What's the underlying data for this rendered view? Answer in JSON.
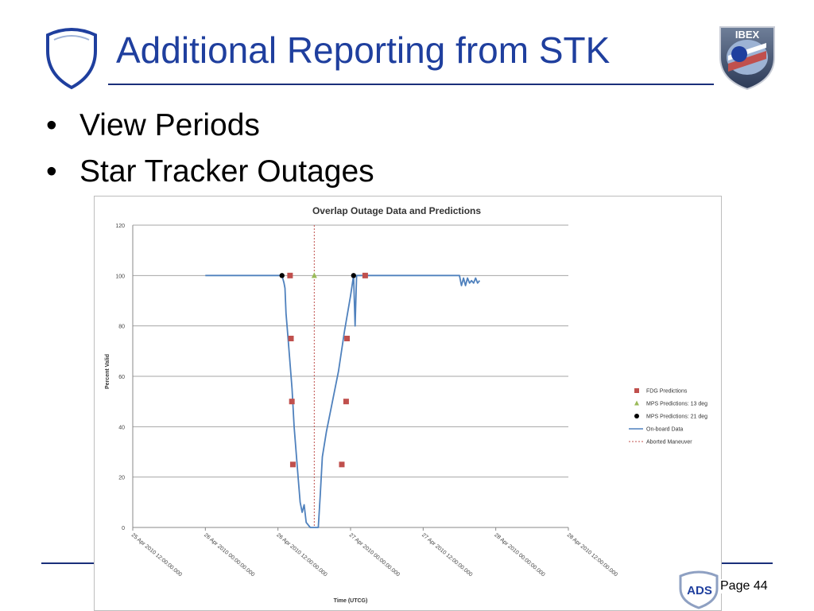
{
  "slide": {
    "title": "Additional Reporting from STK",
    "bullets": [
      "View Periods",
      "Star Tracker Outages"
    ],
    "page_label": "Page 44",
    "footer_logo_text": "ADS",
    "brand_color": "#1f3f9e",
    "logo_text": "IBEX"
  },
  "chart_data": {
    "type": "scatter",
    "title": "Overlap Outage Data and Predictions",
    "xlabel": "Time (UTCG)",
    "ylabel": "Percent Valid",
    "ylim": [
      0,
      120
    ],
    "yticks": [
      0,
      20,
      40,
      60,
      80,
      100,
      120
    ],
    "xlim": [
      "25 Apr 2010 12:00:00.000",
      "28 Apr 2010 12:00:00.000"
    ],
    "xticks": [
      "25 Apr 2010 12:00:00.000",
      "26 Apr 2010 00:00:00.000",
      "26 Apr 2010 12:00:00.000",
      "27 Apr 2010 00:00:00.000",
      "27 Apr 2010 12:00:00.000",
      "28 Apr 2010 00:00:00.000",
      "28 Apr 2010 12:00:00.000"
    ],
    "grid": true,
    "legend_position": "right",
    "legend": [
      "FDG Predictions",
      "MPS Predictions: 13 deg",
      "MPS Predictions: 21 deg",
      "On-board Data",
      "Aborted Maneuver"
    ],
    "series": [
      {
        "name": "FDG Predictions",
        "kind": "scatter",
        "marker": "square",
        "color": "#c0504d",
        "points": [
          {
            "x": "26 Apr 2010 14:00:00.000",
            "y": 100
          },
          {
            "x": "26 Apr 2010 14:09:00.000",
            "y": 75
          },
          {
            "x": "26 Apr 2010 14:18:00.000",
            "y": 50
          },
          {
            "x": "26 Apr 2010 14:28:00.000",
            "y": 25
          },
          {
            "x": "26 Apr 2010 22:33:00.000",
            "y": 25
          },
          {
            "x": "26 Apr 2010 23:16:00.000",
            "y": 50
          },
          {
            "x": "26 Apr 2010 23:25:00.000",
            "y": 75
          },
          {
            "x": "27 Apr 2010 02:25:00.000",
            "y": 100
          }
        ]
      },
      {
        "name": "MPS Predictions: 13 deg",
        "kind": "scatter",
        "marker": "triangle",
        "color": "#9bbb59",
        "points": [
          {
            "x": "26 Apr 2010 18:00:00.000",
            "y": 100
          }
        ]
      },
      {
        "name": "MPS Predictions: 21 deg",
        "kind": "scatter",
        "marker": "circle",
        "color": "#000000",
        "points": [
          {
            "x": "26 Apr 2010 12:40:00.000",
            "y": 100
          },
          {
            "x": "27 Apr 2010 00:30:00.000",
            "y": 100
          }
        ]
      },
      {
        "name": "On-board Data",
        "kind": "line",
        "color": "#4f81bd",
        "points": [
          {
            "x": "26 Apr 2010 00:00:00.000",
            "y": 100
          },
          {
            "x": "26 Apr 2010 12:40:00.000",
            "y": 100
          },
          {
            "x": "26 Apr 2010 13:00:00.000",
            "y": 97
          },
          {
            "x": "26 Apr 2010 13:10:00.000",
            "y": 95
          },
          {
            "x": "26 Apr 2010 13:20:00.000",
            "y": 85
          },
          {
            "x": "26 Apr 2010 13:40:00.000",
            "y": 75
          },
          {
            "x": "26 Apr 2010 14:00:00.000",
            "y": 65
          },
          {
            "x": "26 Apr 2010 14:20:00.000",
            "y": 55
          },
          {
            "x": "26 Apr 2010 14:40:00.000",
            "y": 40
          },
          {
            "x": "26 Apr 2010 15:00:00.000",
            "y": 30
          },
          {
            "x": "26 Apr 2010 15:20:00.000",
            "y": 20
          },
          {
            "x": "26 Apr 2010 15:40:00.000",
            "y": 10
          },
          {
            "x": "26 Apr 2010 16:00:00.000",
            "y": 6
          },
          {
            "x": "26 Apr 2010 16:20:00.000",
            "y": 9
          },
          {
            "x": "26 Apr 2010 16:40:00.000",
            "y": 2
          },
          {
            "x": "26 Apr 2010 17:20:00.000",
            "y": 0
          },
          {
            "x": "26 Apr 2010 18:40:00.000",
            "y": 0
          },
          {
            "x": "26 Apr 2010 19:00:00.000",
            "y": 13
          },
          {
            "x": "26 Apr 2010 19:20:00.000",
            "y": 28
          },
          {
            "x": "26 Apr 2010 20:00:00.000",
            "y": 38
          },
          {
            "x": "26 Apr 2010 21:00:00.000",
            "y": 50
          },
          {
            "x": "26 Apr 2010 22:00:00.000",
            "y": 62
          },
          {
            "x": "26 Apr 2010 23:00:00.000",
            "y": 78
          },
          {
            "x": "27 Apr 2010 00:00:00.000",
            "y": 92
          },
          {
            "x": "27 Apr 2010 00:30:00.000",
            "y": 100
          },
          {
            "x": "27 Apr 2010 00:45:00.000",
            "y": 80
          },
          {
            "x": "27 Apr 2010 01:00:00.000",
            "y": 100
          },
          {
            "x": "27 Apr 2010 18:00:00.000",
            "y": 100
          },
          {
            "x": "27 Apr 2010 18:20:00.000",
            "y": 96
          },
          {
            "x": "27 Apr 2010 18:40:00.000",
            "y": 99
          },
          {
            "x": "27 Apr 2010 19:00:00.000",
            "y": 96
          },
          {
            "x": "27 Apr 2010 19:20:00.000",
            "y": 99
          },
          {
            "x": "27 Apr 2010 19:40:00.000",
            "y": 97
          },
          {
            "x": "27 Apr 2010 20:00:00.000",
            "y": 98
          },
          {
            "x": "27 Apr 2010 20:20:00.000",
            "y": 97
          },
          {
            "x": "27 Apr 2010 20:40:00.000",
            "y": 99
          },
          {
            "x": "27 Apr 2010 21:00:00.000",
            "y": 97
          },
          {
            "x": "27 Apr 2010 21:20:00.000",
            "y": 98
          }
        ]
      },
      {
        "name": "Aborted Maneuver",
        "kind": "vline",
        "color": "#c0504d",
        "x": "26 Apr 2010 18:00:00.000"
      }
    ]
  }
}
